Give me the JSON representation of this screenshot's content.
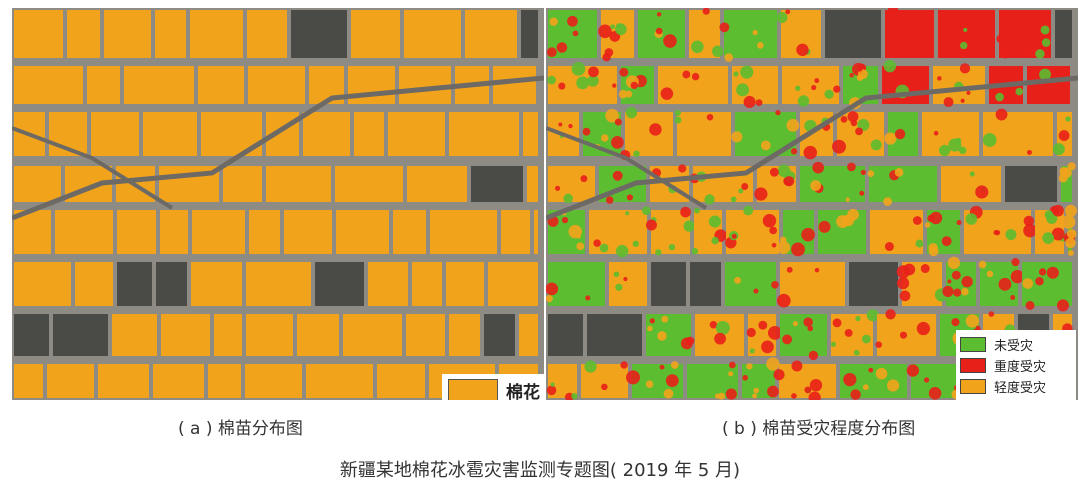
{
  "title": "新疆某地棉花冰雹灾害监测专题图( 2019 年 5 月)",
  "panel_a": {
    "caption": "( a ) 棉苗分布图",
    "legend": [
      {
        "label": "棉花",
        "color": "#f2a31c"
      }
    ]
  },
  "panel_b": {
    "caption": "( b ) 棉苗受灾程度分布图",
    "legend": [
      {
        "label": "未受灾",
        "color": "#5cbd31"
      },
      {
        "label": "重度受灾",
        "color": "#e8201a"
      },
      {
        "label": "轻度受灾",
        "color": "#f2a31c"
      }
    ]
  },
  "colors": {
    "cotton": "#f2a31c",
    "undamaged": "#5cbd31",
    "severe": "#e8201a",
    "light": "#f2a31c",
    "background": "#9a968f"
  }
}
